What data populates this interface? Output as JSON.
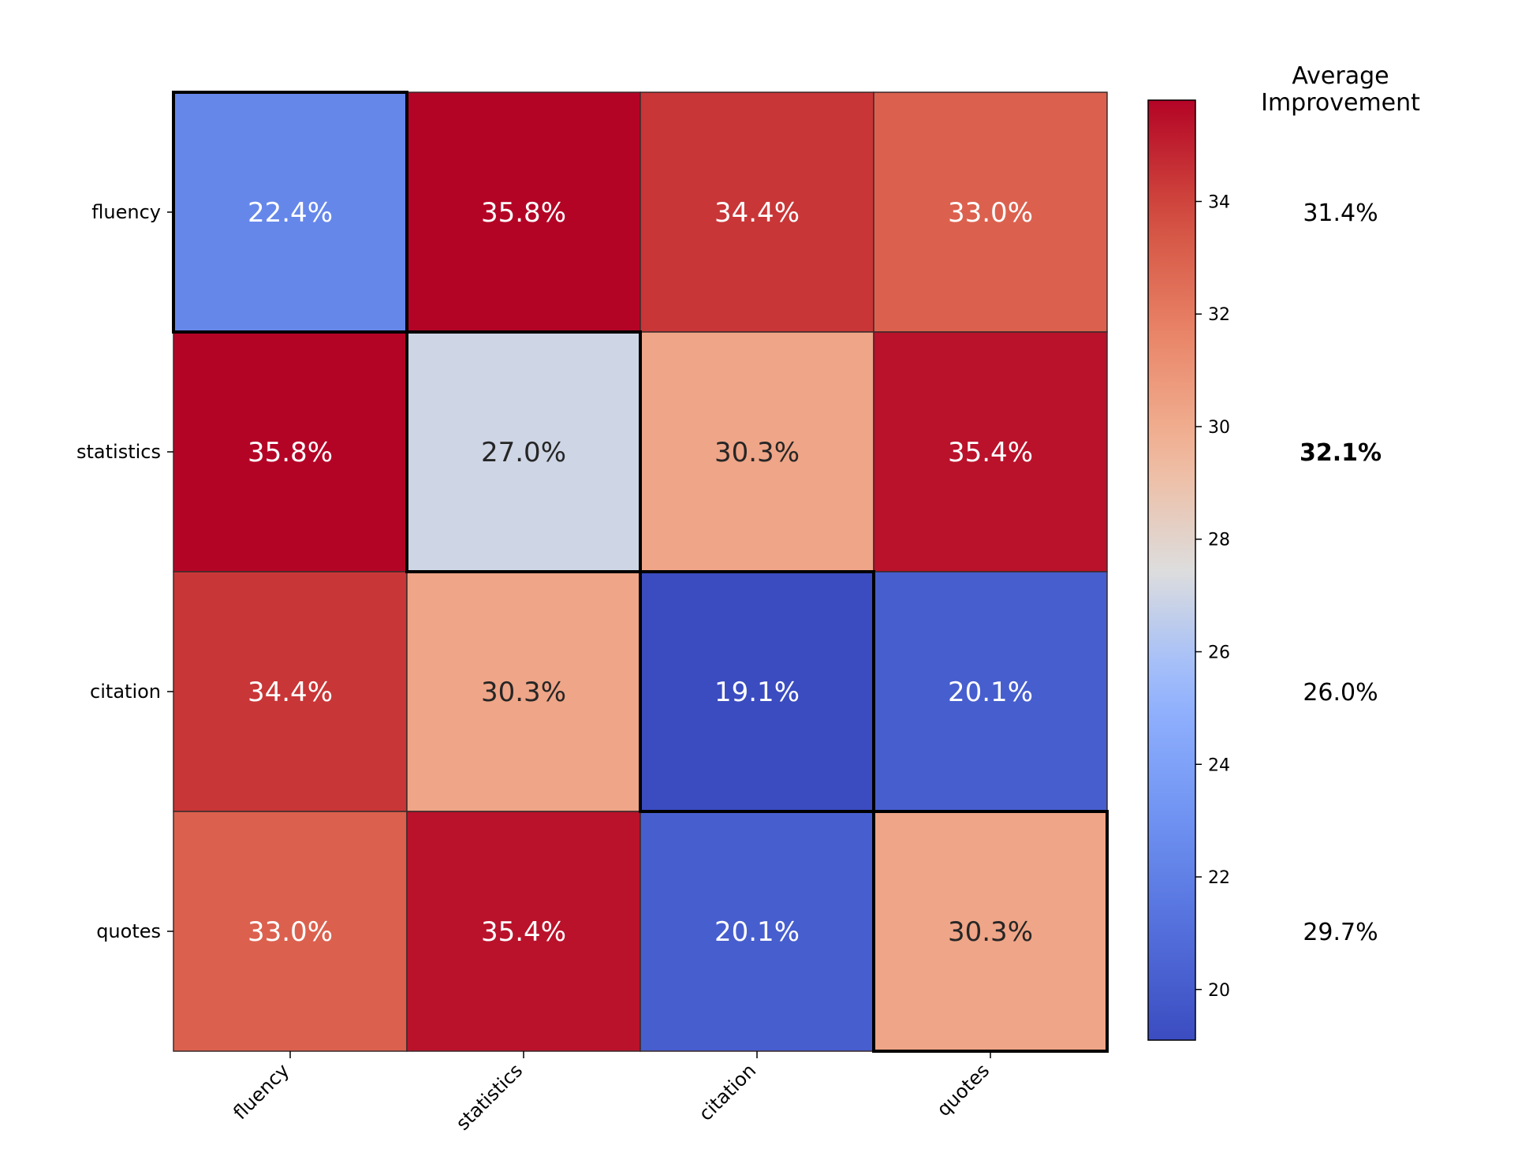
{
  "chart_data": {
    "type": "heatmap",
    "rows": [
      "fluency",
      "statistics",
      "citation",
      "quotes"
    ],
    "columns": [
      "fluency",
      "statistics",
      "citation",
      "quotes"
    ],
    "values": [
      [
        22.4,
        35.8,
        34.4,
        33.0
      ],
      [
        35.8,
        27.0,
        30.3,
        35.4
      ],
      [
        34.4,
        30.3,
        19.1,
        20.1
      ],
      [
        33.0,
        35.4,
        20.1,
        30.3
      ]
    ],
    "labels": [
      [
        "22.4%",
        "35.8%",
        "34.4%",
        "33.0%"
      ],
      [
        "35.8%",
        "27.0%",
        "30.3%",
        "35.4%"
      ],
      [
        "34.4%",
        "30.3%",
        "19.1%",
        "20.1%"
      ],
      [
        "33.0%",
        "35.4%",
        "20.1%",
        "30.3%"
      ]
    ],
    "diagonal_highlighted": true,
    "colormap": "coolwarm",
    "vmin": 19.1,
    "vmax": 35.8,
    "colorbar": {
      "ticks": [
        20,
        22,
        24,
        26,
        28,
        30,
        32,
        34
      ],
      "tick_labels": [
        "20",
        "22",
        "24",
        "26",
        "28",
        "30",
        "32",
        "34"
      ]
    },
    "side_panel": {
      "title_line1": "Average",
      "title_line2": "Improvement",
      "values": [
        "31.4%",
        "32.1%",
        "26.0%",
        "29.7%"
      ],
      "bold_index": 1
    },
    "title": "",
    "xlabel": "",
    "ylabel": ""
  }
}
